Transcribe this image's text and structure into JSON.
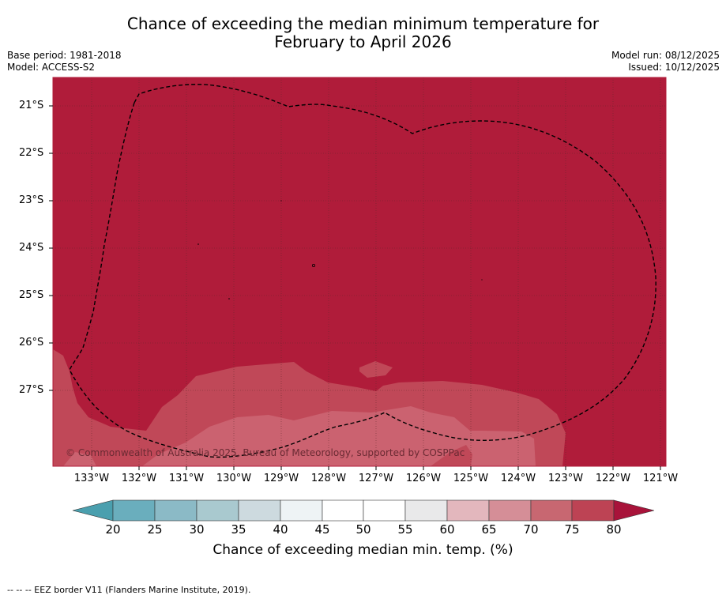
{
  "title": {
    "line1": "Chance of exceeding the median minimum temperature for",
    "line2": "February to April 2026"
  },
  "meta": {
    "base_period": "Base period: 1981-2018",
    "model": "Model: ACCESS-S2",
    "model_run": "Model run: 08/12/2025",
    "issued": "Issued: 10/12/2025"
  },
  "map": {
    "latitude_labels": [
      "21°S",
      "22°S",
      "23°S",
      "24°S",
      "25°S",
      "26°S",
      "27°S"
    ],
    "longitude_labels": [
      "133°W",
      "132°W",
      "131°W",
      "130°W",
      "129°W",
      "128°W",
      "127°W",
      "126°W",
      "125°W",
      "124°W",
      "123°W",
      "122°W",
      "121°W"
    ],
    "copyright": "© Commonwealth of Australia 2025, Bureau of Meteorology, supported by COSPPac",
    "colors": {
      "band_80_plus": "#b01c3a",
      "band_75_80": "#c04858",
      "band_70_75": "#cb6270",
      "gridline": "#5a2a2a",
      "eez_border": "#000000"
    }
  },
  "colorbar": {
    "ticks": [
      "20",
      "25",
      "30",
      "35",
      "40",
      "45",
      "50",
      "55",
      "60",
      "65",
      "70",
      "75",
      "80"
    ],
    "colors": [
      "#6aaebd",
      "#8bbac6",
      "#a9c9cf",
      "#cddadf",
      "#eef3f5",
      "#ffffff",
      "#ffffff",
      "#e9e9ea",
      "#e3b7bd",
      "#d58e97",
      "#c86771",
      "#bd4354"
    ],
    "under_color": "#4a9fae",
    "over_color": "#a8133a",
    "label": "Chance of exceeding median min. temp. (%)"
  },
  "footnote": "--  --  -- EEZ border V11 (Flanders Marine Institute, 2019)."
}
